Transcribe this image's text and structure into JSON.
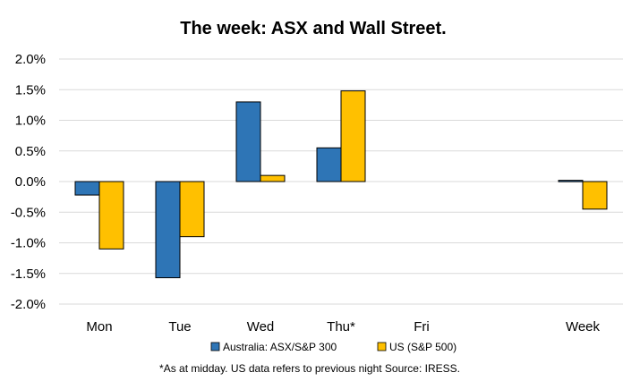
{
  "chart_data": {
    "type": "bar",
    "title": "The week:  ASX and Wall Street.",
    "categories": [
      "Mon",
      "Tue",
      "Wed",
      "Thu*",
      "Fri",
      "",
      "Week"
    ],
    "series": [
      {
        "name": "Australia: ASX/S&P 300",
        "color": "#2E75B6",
        "values": [
          -0.22,
          -1.57,
          1.3,
          0.55,
          null,
          null,
          0.02
        ]
      },
      {
        "name": "US (S&P 500)",
        "color": "#FFC000",
        "values": [
          -1.1,
          -0.9,
          0.1,
          1.48,
          null,
          null,
          -0.45
        ]
      }
    ],
    "ylim": [
      -2.0,
      2.0
    ],
    "yticks": [
      "2.0%",
      "1.5%",
      "1.0%",
      "0.5%",
      "0.0%",
      "-0.5%",
      "-1.0%",
      "-1.5%",
      "-2.0%"
    ],
    "ytick_values": [
      2.0,
      1.5,
      1.0,
      0.5,
      0.0,
      -0.5,
      -1.0,
      -1.5,
      -2.0
    ],
    "grid": true,
    "legend_position": "bottom",
    "footnote": "*As at midday. US data refers to previous night  Source:  IRESS."
  }
}
